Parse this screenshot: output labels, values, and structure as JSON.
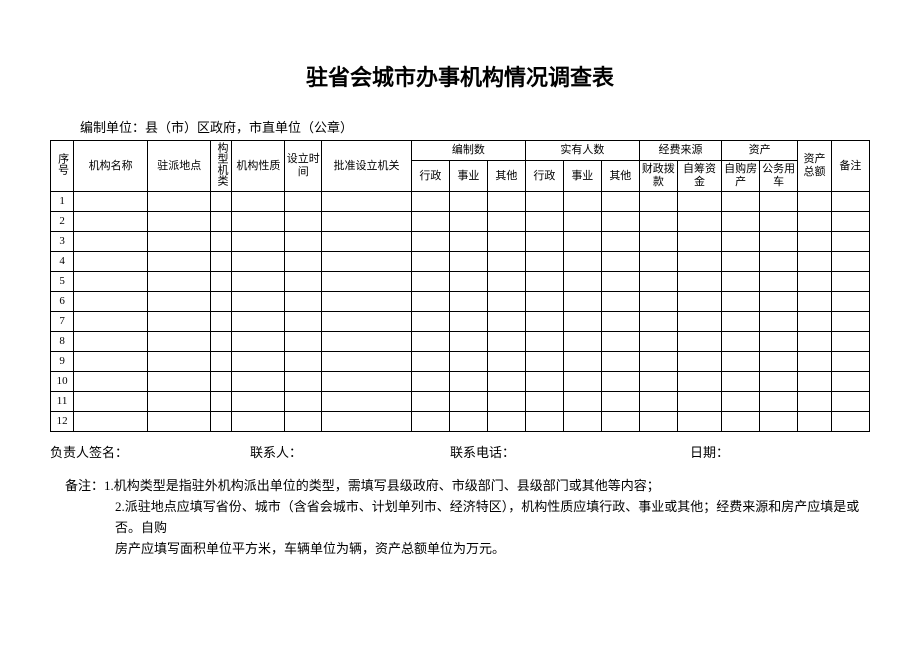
{
  "title": "驻省会城市办事机构情况调查表",
  "unit_line": "编制单位：县（市）区政府，市直单位（公章）",
  "headers": {
    "seq": "序号",
    "org_name": "机构名称",
    "location": "驻派地点",
    "org_type": "构型机类",
    "org_nature": "机构性质",
    "setup_time": "设立时间",
    "approval": "批准设立机关",
    "staff_count": "编制数",
    "actual_count": "实有人数",
    "funding": "经费来源",
    "assets": "资产",
    "total_assets": "资产总额",
    "remarks": "备注",
    "admin": "行政",
    "career": "事业",
    "other": "其他",
    "fiscal": "财政拨款",
    "self_raised": "自筹资金",
    "self_property": "自购房产",
    "official_car": "公务用车"
  },
  "rows": [
    "1",
    "2",
    "3",
    "4",
    "5",
    "6",
    "7",
    "8",
    "9",
    "10",
    "11",
    "12"
  ],
  "footer": {
    "signer": "负责人签名：",
    "contact": "联系人：",
    "phone": "联系电话：",
    "date": "日期："
  },
  "notes": {
    "prefix": "备注：",
    "line1": "1.机构类型是指驻外机构派出单位的类型，需填写县级政府、市级部门、县级部门或其他等内容；",
    "line2a": "2.派驻地点应填写省份、城市（含省会城市、计划单列市、经济特区），机构性质应填行政、事业或其他；经费来源和房产应填是或否。自购",
    "line2b": "房产应填写面积单位平方米，车辆单位为辆，资产总额单位为万元。"
  },
  "style": {
    "background_color": "#ffffff",
    "text_color": "#000000",
    "border_color": "#000000",
    "title_fontsize": 22,
    "body_fontsize": 13,
    "table_fontsize": 11
  }
}
